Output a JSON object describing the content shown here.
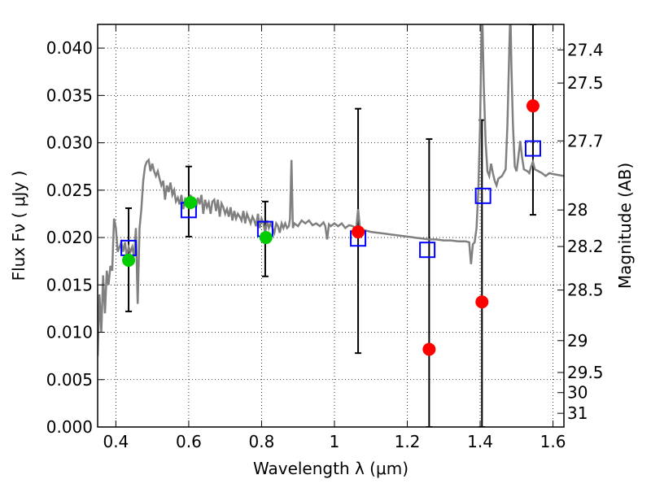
{
  "chart_data": {
    "type": "scatter",
    "xlabel": "Wavelength  λ (μm)",
    "ylabel_left": "Flux  Fν  ( μJy )",
    "ylabel_right": "Magnitude (AB)",
    "xlim": [
      0.35,
      1.63
    ],
    "ylim": [
      0.0,
      0.0425
    ],
    "grid": true,
    "x_ticks": [
      {
        "value": 0.4,
        "label": "0.4"
      },
      {
        "value": 0.6,
        "label": "0.6"
      },
      {
        "value": 0.8,
        "label": "0.8"
      },
      {
        "value": 1.0,
        "label": "1"
      },
      {
        "value": 1.2,
        "label": "1.2"
      },
      {
        "value": 1.4,
        "label": "1.4"
      },
      {
        "value": 1.6,
        "label": "1.6"
      }
    ],
    "y_ticks": [
      {
        "value": 0.0,
        "label": "0.000"
      },
      {
        "value": 0.005,
        "label": "0.005"
      },
      {
        "value": 0.01,
        "label": "0.010"
      },
      {
        "value": 0.015,
        "label": "0.015"
      },
      {
        "value": 0.02,
        "label": "0.020"
      },
      {
        "value": 0.025,
        "label": "0.025"
      },
      {
        "value": 0.03,
        "label": "0.030"
      },
      {
        "value": 0.035,
        "label": "0.035"
      },
      {
        "value": 0.04,
        "label": "0.040"
      }
    ],
    "y2_ticks": [
      {
        "value": 27.4,
        "label": "27.4"
      },
      {
        "value": 27.5,
        "label": "27.5"
      },
      {
        "value": 27.7,
        "label": "27.7"
      },
      {
        "value": 28,
        "label": "28"
      },
      {
        "value": 28.2,
        "label": "28.2"
      },
      {
        "value": 28.5,
        "label": "28.5"
      },
      {
        "value": 29,
        "label": "29"
      },
      {
        "value": 29.5,
        "label": "29.5"
      },
      {
        "value": 30,
        "label": "30"
      },
      {
        "value": 31,
        "label": "31"
      }
    ],
    "series": [
      {
        "kind": "line",
        "color": "#808080",
        "points": [
          [
            0.35,
            0.0075
          ],
          [
            0.355,
            0.014
          ],
          [
            0.36,
            0.01
          ],
          [
            0.365,
            0.016
          ],
          [
            0.37,
            0.012
          ],
          [
            0.375,
            0.0165
          ],
          [
            0.38,
            0.015
          ],
          [
            0.385,
            0.017
          ],
          [
            0.39,
            0.0165
          ],
          [
            0.395,
            0.022
          ],
          [
            0.4,
            0.021
          ],
          [
            0.405,
            0.0185
          ],
          [
            0.41,
            0.019
          ],
          [
            0.415,
            0.0195
          ],
          [
            0.42,
            0.0185
          ],
          [
            0.425,
            0.0195
          ],
          [
            0.43,
            0.018
          ],
          [
            0.435,
            0.019
          ],
          [
            0.44,
            0.0185
          ],
          [
            0.445,
            0.019
          ],
          [
            0.45,
            0.018
          ],
          [
            0.455,
            0.021
          ],
          [
            0.46,
            0.013
          ],
          [
            0.465,
            0.021
          ],
          [
            0.47,
            0.023
          ],
          [
            0.475,
            0.026
          ],
          [
            0.48,
            0.0275
          ],
          [
            0.485,
            0.028
          ],
          [
            0.49,
            0.0282
          ],
          [
            0.495,
            0.027
          ],
          [
            0.5,
            0.0278
          ],
          [
            0.505,
            0.027
          ],
          [
            0.51,
            0.0265
          ],
          [
            0.515,
            0.027
          ],
          [
            0.52,
            0.0262
          ],
          [
            0.525,
            0.0255
          ],
          [
            0.53,
            0.026
          ],
          [
            0.535,
            0.024
          ],
          [
            0.54,
            0.0255
          ],
          [
            0.545,
            0.0248
          ],
          [
            0.55,
            0.0258
          ],
          [
            0.555,
            0.0245
          ],
          [
            0.56,
            0.025
          ],
          [
            0.565,
            0.0238
          ],
          [
            0.57,
            0.0242
          ],
          [
            0.575,
            0.0235
          ],
          [
            0.58,
            0.0245
          ],
          [
            0.585,
            0.023
          ],
          [
            0.59,
            0.024
          ],
          [
            0.595,
            0.0235
          ],
          [
            0.6,
            0.0238
          ],
          [
            0.605,
            0.0245
          ],
          [
            0.61,
            0.0237
          ],
          [
            0.615,
            0.024
          ],
          [
            0.62,
            0.0232
          ],
          [
            0.625,
            0.0242
          ],
          [
            0.63,
            0.0235
          ],
          [
            0.635,
            0.0245
          ],
          [
            0.64,
            0.0225
          ],
          [
            0.645,
            0.024
          ],
          [
            0.65,
            0.0232
          ],
          [
            0.655,
            0.0237
          ],
          [
            0.66,
            0.0225
          ],
          [
            0.665,
            0.0238
          ],
          [
            0.67,
            0.024
          ],
          [
            0.675,
            0.0228
          ],
          [
            0.68,
            0.024
          ],
          [
            0.685,
            0.0222
          ],
          [
            0.69,
            0.0236
          ],
          [
            0.695,
            0.0232
          ],
          [
            0.7,
            0.0225
          ],
          [
            0.705,
            0.023
          ],
          [
            0.71,
            0.0222
          ],
          [
            0.715,
            0.0232
          ],
          [
            0.72,
            0.0218
          ],
          [
            0.725,
            0.0228
          ],
          [
            0.73,
            0.022
          ],
          [
            0.735,
            0.0225
          ],
          [
            0.74,
            0.0222
          ],
          [
            0.745,
            0.0218
          ],
          [
            0.75,
            0.0228
          ],
          [
            0.755,
            0.0215
          ],
          [
            0.76,
            0.0225
          ],
          [
            0.765,
            0.022
          ],
          [
            0.77,
            0.0215
          ],
          [
            0.775,
            0.0222
          ],
          [
            0.78,
            0.0218
          ],
          [
            0.785,
            0.0212
          ],
          [
            0.79,
            0.0225
          ],
          [
            0.795,
            0.021
          ],
          [
            0.8,
            0.022
          ],
          [
            0.805,
            0.0215
          ],
          [
            0.81,
            0.0205
          ],
          [
            0.815,
            0.0218
          ],
          [
            0.82,
            0.021
          ],
          [
            0.825,
            0.0215
          ],
          [
            0.83,
            0.021
          ],
          [
            0.835,
            0.0205
          ],
          [
            0.84,
            0.0215
          ],
          [
            0.845,
            0.0212
          ],
          [
            0.85,
            0.0205
          ],
          [
            0.855,
            0.0215
          ],
          [
            0.86,
            0.021
          ],
          [
            0.865,
            0.0215
          ],
          [
            0.87,
            0.021
          ],
          [
            0.875,
            0.0212
          ],
          [
            0.878,
            0.022
          ],
          [
            0.882,
            0.0282
          ],
          [
            0.886,
            0.021
          ],
          [
            0.89,
            0.0215
          ],
          [
            0.9,
            0.0212
          ],
          [
            0.91,
            0.0218
          ],
          [
            0.92,
            0.0215
          ],
          [
            0.93,
            0.0218
          ],
          [
            0.94,
            0.0213
          ],
          [
            0.95,
            0.0215
          ],
          [
            0.96,
            0.0212
          ],
          [
            0.97,
            0.0216
          ],
          [
            0.975,
            0.0212
          ],
          [
            0.98,
            0.0198
          ],
          [
            0.985,
            0.0214
          ],
          [
            0.99,
            0.0212
          ],
          [
            1.0,
            0.0215
          ],
          [
            1.01,
            0.0212
          ],
          [
            1.02,
            0.0215
          ],
          [
            1.03,
            0.021
          ],
          [
            1.04,
            0.0213
          ],
          [
            1.05,
            0.0212
          ],
          [
            1.06,
            0.021
          ],
          [
            1.065,
            0.023
          ],
          [
            1.07,
            0.021
          ],
          [
            1.08,
            0.0208
          ],
          [
            1.1,
            0.0206
          ],
          [
            1.12,
            0.0205
          ],
          [
            1.14,
            0.0204
          ],
          [
            1.16,
            0.0203
          ],
          [
            1.18,
            0.0202
          ],
          [
            1.2,
            0.0201
          ],
          [
            1.22,
            0.02
          ],
          [
            1.24,
            0.0199
          ],
          [
            1.26,
            0.0198
          ],
          [
            1.28,
            0.0198
          ],
          [
            1.3,
            0.0197
          ],
          [
            1.32,
            0.0197
          ],
          [
            1.34,
            0.0196
          ],
          [
            1.36,
            0.0196
          ],
          [
            1.37,
            0.0195
          ],
          [
            1.375,
            0.0172
          ],
          [
            1.38,
            0.0193
          ],
          [
            1.385,
            0.0195
          ],
          [
            1.39,
            0.021
          ],
          [
            1.395,
            0.025
          ],
          [
            1.4,
            0.032
          ],
          [
            1.405,
            0.045
          ],
          [
            1.41,
            0.036
          ],
          [
            1.415,
            0.03
          ],
          [
            1.42,
            0.027
          ],
          [
            1.425,
            0.0265
          ],
          [
            1.43,
            0.0278
          ],
          [
            1.435,
            0.0268
          ],
          [
            1.44,
            0.026
          ],
          [
            1.445,
            0.0255
          ],
          [
            1.45,
            0.0262
          ],
          [
            1.46,
            0.0265
          ],
          [
            1.47,
            0.0272
          ],
          [
            1.475,
            0.032
          ],
          [
            1.48,
            0.04
          ],
          [
            1.483,
            0.044
          ],
          [
            1.486,
            0.038
          ],
          [
            1.49,
            0.032
          ],
          [
            1.495,
            0.0275
          ],
          [
            1.5,
            0.027
          ],
          [
            1.505,
            0.0285
          ],
          [
            1.51,
            0.0302
          ],
          [
            1.515,
            0.0285
          ],
          [
            1.52,
            0.0272
          ],
          [
            1.53,
            0.027
          ],
          [
            1.535,
            0.0268
          ],
          [
            1.54,
            0.0275
          ],
          [
            1.545,
            0.028
          ],
          [
            1.55,
            0.0272
          ],
          [
            1.56,
            0.027
          ],
          [
            1.57,
            0.0268
          ],
          [
            1.58,
            0.0265
          ],
          [
            1.59,
            0.0268
          ],
          [
            1.6,
            0.0267
          ],
          [
            1.63,
            0.0265
          ]
        ]
      },
      {
        "kind": "squares",
        "color": "#0000ff",
        "points": [
          [
            0.435,
            0.0189
          ],
          [
            0.6,
            0.0229
          ],
          [
            0.81,
            0.0209
          ],
          [
            1.065,
            0.0199
          ],
          [
            1.255,
            0.0187
          ],
          [
            1.408,
            0.0244
          ],
          [
            1.545,
            0.0294
          ]
        ]
      },
      {
        "kind": "points",
        "color": "#00cc00",
        "points": [
          [
            0.435,
            0.0176
          ],
          [
            0.605,
            0.0237
          ],
          [
            0.812,
            0.02
          ]
        ]
      },
      {
        "kind": "points",
        "color": "#ff0000",
        "points": [
          [
            1.065,
            0.0206
          ],
          [
            1.26,
            0.0082
          ],
          [
            1.405,
            0.0132
          ],
          [
            1.545,
            0.0339
          ]
        ]
      }
    ],
    "errorbars": [
      {
        "x": 0.435,
        "low": 0.0122,
        "high": 0.0231
      },
      {
        "x": 0.6,
        "low": 0.0201,
        "high": 0.0275
      },
      {
        "x": 0.81,
        "low": 0.0159,
        "high": 0.0238
      },
      {
        "x": 1.065,
        "low": 0.0078,
        "high": 0.0336
      },
      {
        "x": 1.26,
        "low": 0.0,
        "high": 0.0304
      },
      {
        "x": 1.405,
        "low": 0.0,
        "high": 0.0324
      },
      {
        "x": 1.545,
        "low": 0.0224,
        "high": 0.0425
      }
    ]
  }
}
